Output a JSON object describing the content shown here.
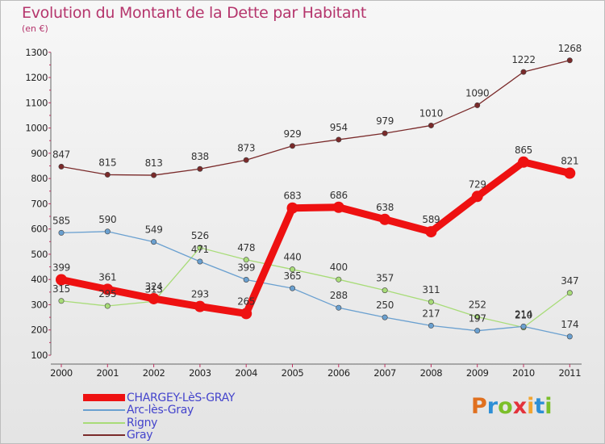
{
  "title": "Evolution du Montant de la Dette par Habitant",
  "subtitle": "(en €)",
  "logo": {
    "letters": [
      "P",
      "r",
      "o",
      "x",
      "i",
      "t",
      "i"
    ],
    "colors": [
      "#e0701f",
      "#2d8fd6",
      "#7bbf2a",
      "#e3323b",
      "#f2a531",
      "#2d8fd6",
      "#7bbf2a"
    ]
  },
  "chart_data": {
    "type": "line",
    "title": "Evolution du Montant de la Dette par Habitant",
    "subtitle": "(en €)",
    "x": [
      "2000",
      "2001",
      "2002",
      "2003",
      "2004",
      "2005",
      "2006",
      "2007",
      "2008",
      "2009",
      "2010",
      "2011"
    ],
    "ylim": [
      100,
      1300
    ],
    "yticks": [
      100,
      200,
      300,
      400,
      500,
      600,
      700,
      800,
      900,
      1000,
      1100,
      1200,
      1300
    ],
    "grid": false,
    "legend_position": "bottom-left",
    "series": [
      {
        "name": "Gray",
        "color": "#7a2a2a",
        "values": [
          847,
          815,
          813,
          838,
          873,
          929,
          954,
          979,
          1010,
          1090,
          1222,
          1268
        ]
      },
      {
        "name": "Rigny",
        "color": "#a8dc78",
        "values": [
          315,
          295,
          313,
          526,
          478,
          440,
          400,
          357,
          311,
          252,
          210,
          347
        ]
      },
      {
        "name": "Arc-lès-Gray",
        "color": "#6aa0d0",
        "values": [
          585,
          590,
          549,
          471,
          399,
          365,
          288,
          250,
          217,
          197,
          214,
          174
        ]
      },
      {
        "name": "CHARGEY-LèS-GRAY",
        "color": "#ee1111",
        "values": [
          399,
          361,
          324,
          293,
          265,
          683,
          686,
          638,
          589,
          729,
          865,
          821
        ]
      }
    ],
    "legend": [
      "CHARGEY-LèS-GRAY",
      "Arc-lès-Gray",
      "Rigny",
      "Gray"
    ]
  }
}
